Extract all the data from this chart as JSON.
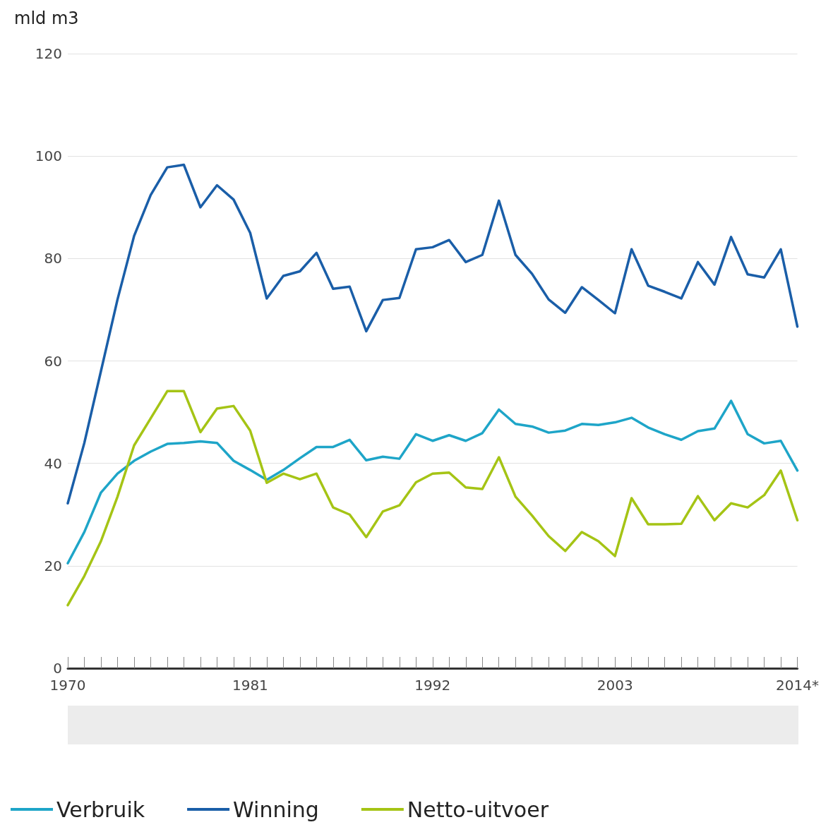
{
  "chart_data": {
    "type": "line",
    "ylabel": "mld m3",
    "categories": [
      "1970",
      null,
      null,
      null,
      null,
      null,
      null,
      null,
      null,
      null,
      null,
      "1981",
      null,
      null,
      null,
      null,
      null,
      null,
      null,
      null,
      null,
      null,
      "1992",
      null,
      null,
      null,
      null,
      null,
      null,
      null,
      null,
      null,
      null,
      "2003",
      null,
      null,
      null,
      null,
      null,
      null,
      null,
      null,
      null,
      null,
      "2014*"
    ],
    "series": [
      {
        "name": "Verbruik",
        "color": "#1ea5c8",
        "values": [
          20.5,
          26.6,
          34.3,
          38,
          40.5,
          42.3,
          43.8,
          44,
          44.3,
          44,
          40.5,
          38.7,
          36.8,
          38.7,
          41,
          43.2,
          43.2,
          44.6,
          40.6,
          41.3,
          40.9,
          45.7,
          44.4,
          45.5,
          44.4,
          45.9,
          50.5,
          47.7,
          47.2,
          46,
          46.4,
          47.7,
          47.5,
          48,
          48.9,
          47,
          45.7,
          44.6,
          46.3,
          46.8,
          52.2,
          45.7,
          43.9,
          44.4,
          38.6
        ]
      },
      {
        "name": "Winning",
        "color": "#1a5ea8",
        "values": [
          32.2,
          44,
          58,
          72,
          84.4,
          92.4,
          97.8,
          98.3,
          90,
          94.3,
          91.5,
          85,
          72.2,
          76.6,
          77.5,
          81.1,
          74.1,
          74.5,
          65.8,
          71.9,
          72.3,
          81.8,
          82.2,
          83.6,
          79.3,
          80.7,
          91.3,
          80.7,
          77,
          72,
          69.4,
          74.4,
          71.9,
          69.3,
          81.8,
          74.7,
          73.5,
          72.2,
          79.3,
          74.9,
          84.2,
          76.9,
          76.3,
          81.8,
          66.7
        ]
      },
      {
        "name": "Netto-uitvoer",
        "color": "#a5c415",
        "values": [
          12.3,
          18,
          24.8,
          33.5,
          43.5,
          48.8,
          54.1,
          54.1,
          46.1,
          50.7,
          51.2,
          46.4,
          36.2,
          38,
          36.9,
          38,
          31.4,
          30,
          25.6,
          30.6,
          31.8,
          36.3,
          38,
          38.2,
          35.3,
          35,
          41.2,
          33.5,
          29.8,
          25.8,
          22.9,
          26.6,
          24.8,
          21.9,
          33.2,
          28.1,
          28.1,
          28.2,
          33.6,
          28.9,
          32.2,
          31.4,
          33.8,
          38.6,
          28.9
        ]
      }
    ],
    "ylim": [
      0,
      120
    ],
    "yticks": [
      0,
      20,
      40,
      60,
      80,
      100,
      120
    ],
    "grid": "y",
    "legend": "bottom left",
    "marker": "none",
    "line_style": "solid"
  }
}
